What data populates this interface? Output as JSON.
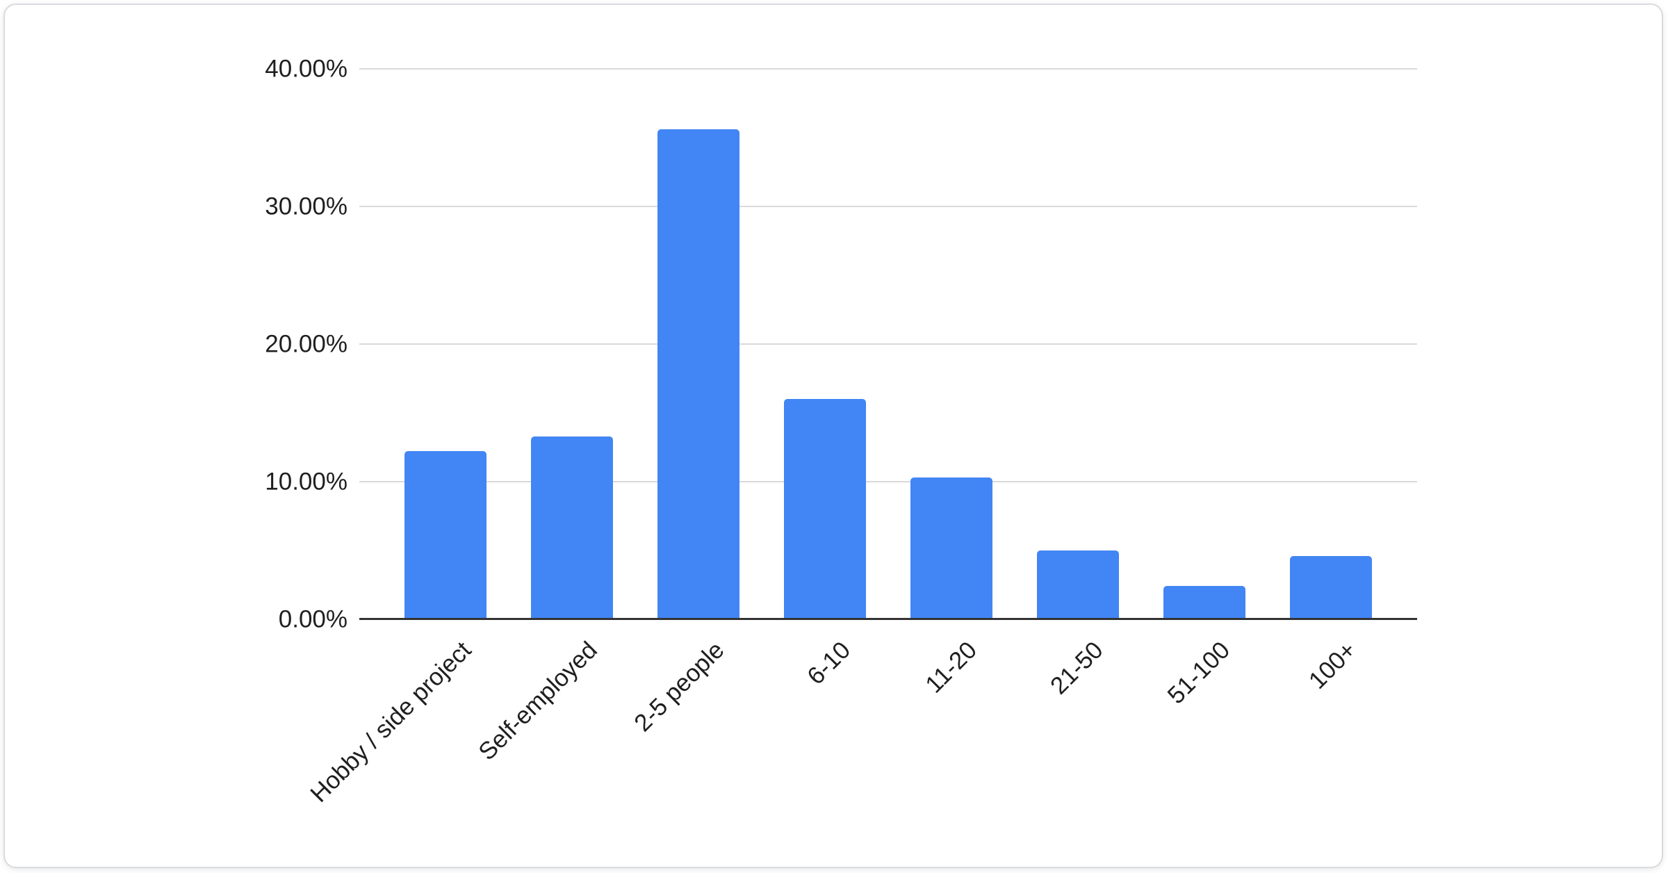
{
  "card": {
    "background": "#ffffff",
    "border_color": "#d9dbdf"
  },
  "chart_data": {
    "type": "bar",
    "title": "",
    "xlabel": "",
    "ylabel": "",
    "categories": [
      "Hobby / side project",
      "Self-employed",
      "2-5 people",
      "6-10",
      "11-20",
      "21-50",
      "51-100",
      "100+"
    ],
    "values": [
      12.2,
      13.3,
      35.6,
      16.0,
      10.3,
      5.0,
      2.4,
      4.6
    ],
    "value_unit": "%",
    "ylim": [
      0,
      40
    ],
    "y_ticks": [
      {
        "value": 40,
        "label": "40.00%"
      },
      {
        "value": 30,
        "label": "30.00%"
      },
      {
        "value": 20,
        "label": "20.00%"
      },
      {
        "value": 10,
        "label": "10.00%"
      },
      {
        "value": 0,
        "label": "0.00%"
      }
    ],
    "grid": true,
    "legend": "none",
    "x_label_rotation_deg": -45,
    "bar_color": "#4285f4",
    "gridline_color": "#d9d9d9",
    "axis_line_color": "#333333",
    "label_color": "#1f1f1f"
  }
}
